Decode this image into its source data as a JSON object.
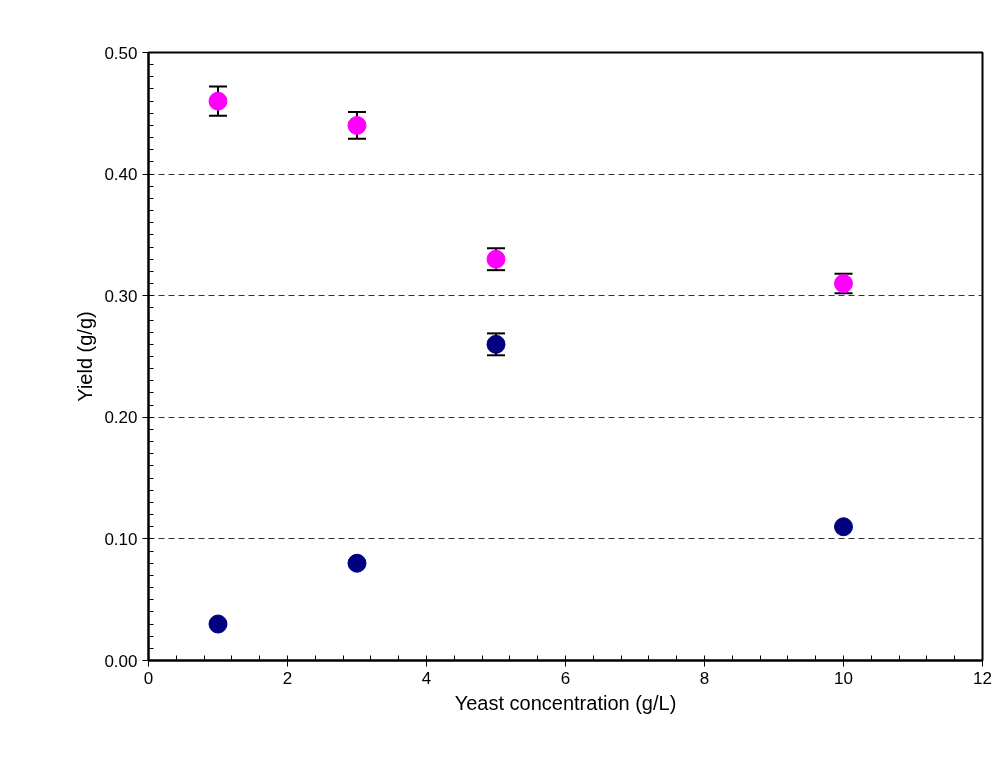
{
  "chart_data": {
    "type": "scatter",
    "xlabel": "Yeast concentration (g/L)",
    "ylabel": "Yield (g/g)",
    "xlim": [
      0,
      12
    ],
    "xticks": [
      0,
      2,
      4,
      6,
      8,
      10,
      12
    ],
    "ylim": [
      0,
      0.5
    ],
    "yticks": [
      {
        "value": 0,
        "label": "0.00"
      },
      {
        "value": 0.1,
        "label": "0.10"
      },
      {
        "value": 0.2,
        "label": "0.20"
      },
      {
        "value": 0.3,
        "label": "0.30"
      },
      {
        "value": 0.4,
        "label": "0.40"
      },
      {
        "value": 0.5,
        "label": "0.50"
      }
    ],
    "grid": "y",
    "marker": "circle",
    "series": [
      {
        "color": "#ff00ff",
        "x": [
          1,
          3,
          5,
          10
        ],
        "values": [
          0.46,
          0.44,
          0.33,
          0.31
        ],
        "errors": [
          0.012,
          0.011,
          0.009,
          0.008
        ]
      },
      {
        "color": "#000080",
        "x": [
          1,
          3,
          5,
          10
        ],
        "values": [
          0.03,
          0.08,
          0.26,
          0.11
        ],
        "errors": [
          null,
          null,
          0.009,
          null
        ]
      }
    ]
  }
}
